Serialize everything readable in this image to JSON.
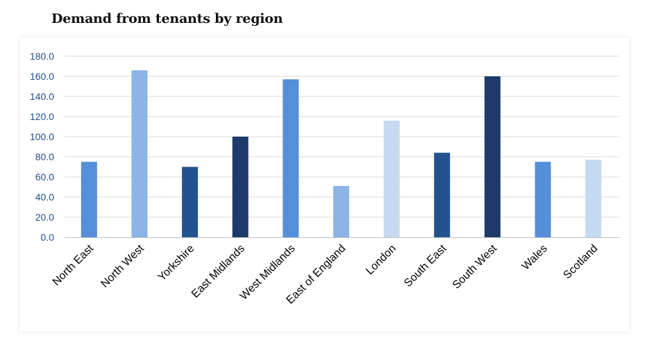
{
  "page": {
    "title": "Demand from tenants by region"
  },
  "colors": {
    "tick_text": "#1f4e8c",
    "gridline": "#d9d9d9",
    "axis": "#bfbfbf",
    "card_bg": "#ffffff"
  },
  "chart_data": {
    "type": "bar",
    "title": "Demand from tenants by region",
    "xlabel": "",
    "ylabel": "",
    "ylim": [
      0,
      180
    ],
    "yticks": [
      "0.0",
      "20.0",
      "40.0",
      "60.0",
      "80.0",
      "100.0",
      "120.0",
      "140.0",
      "160.0",
      "180.0"
    ],
    "grid": true,
    "legend": "none",
    "categories": [
      "North East",
      "North West",
      "Yorkshire",
      "East Midlands",
      "West Midlands",
      "East of England",
      "London",
      "South East",
      "South West",
      "Wales",
      "Scotland"
    ],
    "values": [
      75,
      166,
      70,
      100,
      157,
      51,
      116,
      84,
      160,
      75,
      77
    ],
    "bar_colors": [
      "#558ed9",
      "#8db4e6",
      "#23528f",
      "#1d3a6b",
      "#558ed9",
      "#8db4e6",
      "#c5d9f0",
      "#23528f",
      "#1d3a6b",
      "#558ed9",
      "#c5d9f0"
    ]
  }
}
